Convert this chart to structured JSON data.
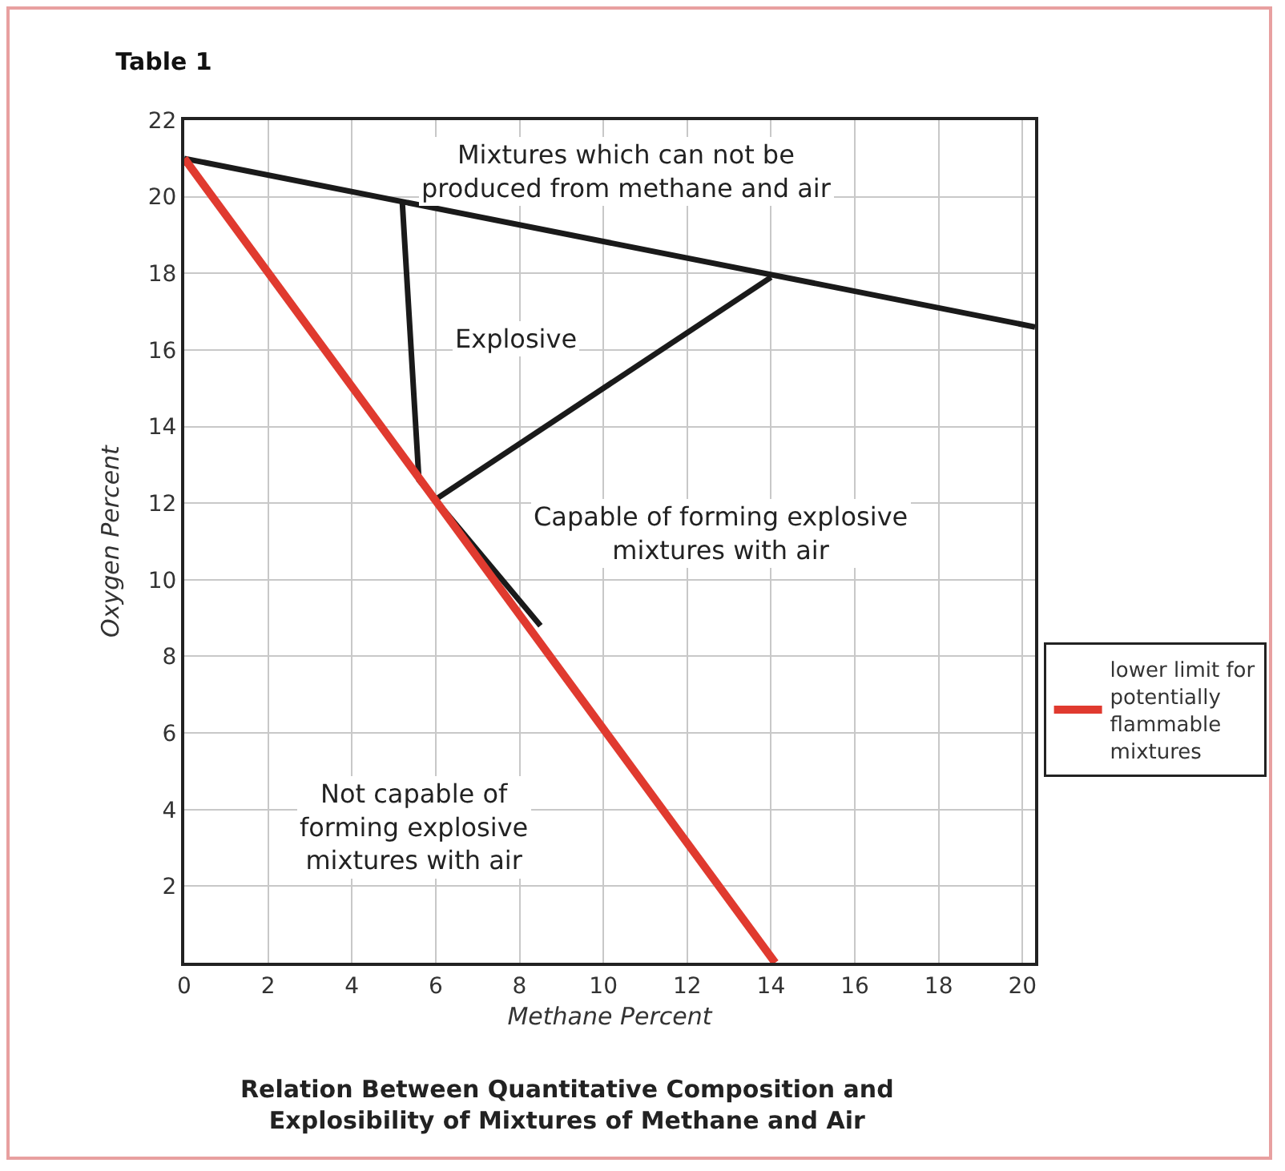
{
  "chart_data": {
    "type": "line",
    "title": "Table 1",
    "xlabel": "Methane Percent",
    "ylabel": "Oxygen Percent",
    "xlim": [
      0,
      20.3
    ],
    "ylim": [
      0,
      22
    ],
    "xticks": [
      0,
      2,
      4,
      6,
      8,
      10,
      12,
      14,
      16,
      18,
      20
    ],
    "yticks": [
      2,
      4,
      6,
      8,
      10,
      12,
      14,
      16,
      18,
      20,
      22
    ],
    "grid": true,
    "legend": "right",
    "marker": "none",
    "line_style": "solid",
    "series": [
      {
        "color": "#1a1a1a",
        "x": [
          0,
          20.3
        ],
        "values": [
          21,
          16.6
        ]
      },
      {
        "color": "#1a1a1a",
        "x": [
          5.2,
          5.6,
          8.5
        ],
        "values": [
          19.9,
          12.6,
          8.8
        ]
      },
      {
        "color": "#1a1a1a",
        "x": [
          6,
          14
        ],
        "values": [
          12.1,
          17.9
        ]
      },
      {
        "name": "lower limit for\npotentially\nflammable\nmixtures",
        "color": "#e03a2f",
        "x": [
          0,
          14.1
        ],
        "values": [
          21,
          0
        ]
      }
    ],
    "annotations": [
      "Mixtures which can not be\nproduced from methane and air",
      "Explosive",
      "Capable of forming explosive\nmixtures with air",
      "Not capable of\nforming explosive\nmixtures with air",
      "Relation Between Quantitative Composition and\nExplosibility of Mixtures of Methane and Air"
    ]
  }
}
